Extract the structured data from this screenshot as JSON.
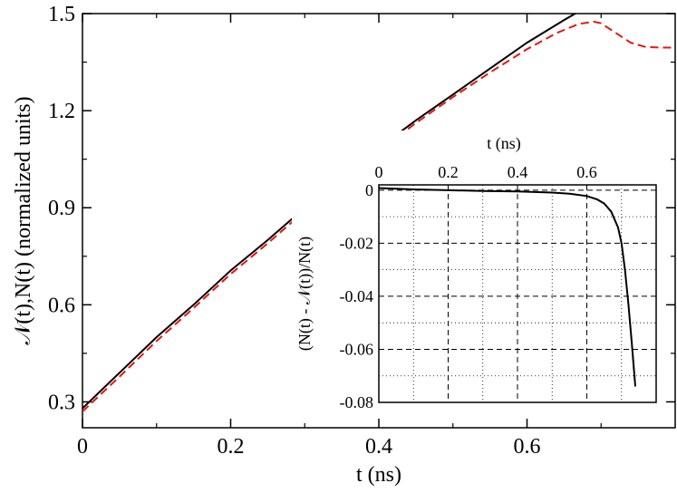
{
  "chart_data": [
    {
      "type": "line",
      "title": "",
      "xlabel": "t (ns)",
      "ylabel": "𝒩(t),N(t) (normalized units)",
      "xlim": [
        0,
        0.8
      ],
      "ylim": [
        0.22,
        1.5
      ],
      "xticks": [
        0,
        0.2,
        0.4,
        0.6
      ],
      "xtick_labels": [
        "0",
        "0.2",
        "0.4",
        "0.6"
      ],
      "yticks": [
        0.3,
        0.6,
        0.9,
        1.2,
        1.5
      ],
      "ytick_labels": [
        "0.3",
        "0.6",
        "0.9",
        "1.2",
        "1.5"
      ],
      "grid": false,
      "legend": "none",
      "series": [
        {
          "style": "solid",
          "color": "#000000",
          "x": [
            0,
            0.05,
            0.1,
            0.15,
            0.2,
            0.25,
            0.3,
            0.35,
            0.4,
            0.45,
            0.5,
            0.55,
            0.6,
            0.65,
            0.68
          ],
          "y": [
            0.28,
            0.39,
            0.5,
            0.6,
            0.706,
            0.8,
            0.9,
            0.995,
            1.085,
            1.17,
            1.25,
            1.33,
            1.41,
            1.48,
            1.52
          ]
        },
        {
          "style": "dashed",
          "color": "#e8150e",
          "x": [
            0,
            0.05,
            0.1,
            0.15,
            0.2,
            0.25,
            0.3,
            0.35,
            0.4,
            0.45,
            0.5,
            0.55,
            0.6,
            0.64,
            0.67,
            0.69,
            0.7,
            0.72,
            0.74,
            0.76,
            0.78,
            0.8
          ],
          "y": [
            0.27,
            0.378,
            0.488,
            0.59,
            0.695,
            0.79,
            0.89,
            0.985,
            1.075,
            1.162,
            1.242,
            1.318,
            1.39,
            1.44,
            1.468,
            1.475,
            1.47,
            1.44,
            1.41,
            1.397,
            1.395,
            1.395
          ]
        }
      ]
    },
    {
      "type": "line",
      "title": "",
      "xlabel": "t (ns)",
      "ylabel": "(N(t) - 𝒩(t))/N(t)",
      "xlim": [
        0,
        0.8
      ],
      "ylim": [
        -0.08,
        0.002
      ],
      "xticks": [
        0,
        0.2,
        0.4,
        0.6
      ],
      "xtick_labels": [
        "0",
        "0.2",
        "0.4",
        "0.6"
      ],
      "yticks": [
        0,
        -0.02,
        -0.04,
        -0.06,
        -0.08
      ],
      "ytick_labels": [
        "0",
        "-0.02",
        "-0.04",
        "-0.06",
        "-0.08"
      ],
      "grid": true,
      "legend": "none",
      "series": [
        {
          "style": "solid",
          "color": "#000000",
          "x": [
            0,
            0.1,
            0.2,
            0.3,
            0.4,
            0.5,
            0.55,
            0.6,
            0.63,
            0.65,
            0.67,
            0.69,
            0.7,
            0.71,
            0.72,
            0.73,
            0.74
          ],
          "y": [
            0.0008,
            0.0003,
            0.0,
            -0.0003,
            -0.0005,
            -0.0009,
            -0.0013,
            -0.0022,
            -0.0035,
            -0.005,
            -0.008,
            -0.014,
            -0.02,
            -0.03,
            -0.043,
            -0.058,
            -0.074
          ]
        }
      ]
    }
  ]
}
